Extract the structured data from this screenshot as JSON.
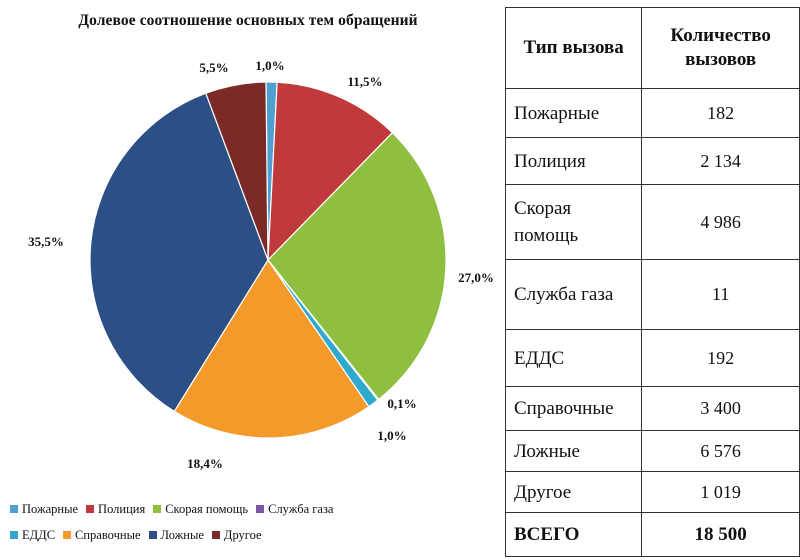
{
  "chart_data": {
    "type": "pie",
    "title": "Долевое соотношение основных тем обращений",
    "slices": [
      {
        "name": "Пожарные",
        "value": 1.0,
        "label": "1,0%",
        "color": "#4f9fd0"
      },
      {
        "name": "Полиция",
        "value": 11.5,
        "label": "11,5%",
        "color": "#c0393b"
      },
      {
        "name": "Скорая помощь",
        "value": 27.0,
        "label": "27,0%",
        "color": "#8fbf3f"
      },
      {
        "name": "Служба газа",
        "value": 0.1,
        "label": "0,1%",
        "color": "#7e57a8"
      },
      {
        "name": "ЕДДС",
        "value": 1.0,
        "label": "1,0%",
        "color": "#2fa9cf"
      },
      {
        "name": "Справочные",
        "value": 18.4,
        "label": "18,4%",
        "color": "#f39a2a"
      },
      {
        "name": "Ложные",
        "value": 35.5,
        "label": "35,5%",
        "color": "#2c4f86"
      },
      {
        "name": "Другое",
        "value": 5.5,
        "label": "5,5%",
        "color": "#7b2a27"
      }
    ],
    "legend_position": "bottom"
  },
  "table": {
    "headers": [
      "Тип вызова",
      "Количество вызовов"
    ],
    "rows": [
      {
        "type": "Пожарные",
        "count": "182"
      },
      {
        "type": "Полиция",
        "count": "2 134"
      },
      {
        "type": "Скорая помощь",
        "count": "4 986"
      },
      {
        "type": "Служба газа",
        "count": "11"
      },
      {
        "type": "ЕДДС",
        "count": "192"
      },
      {
        "type": "Справочные",
        "count": "3 400"
      },
      {
        "type": "Ложные",
        "count": "6 576"
      },
      {
        "type": "Другое",
        "count": "1 019"
      }
    ],
    "total": {
      "type": "ВСЕГО",
      "count": "18 500"
    }
  }
}
